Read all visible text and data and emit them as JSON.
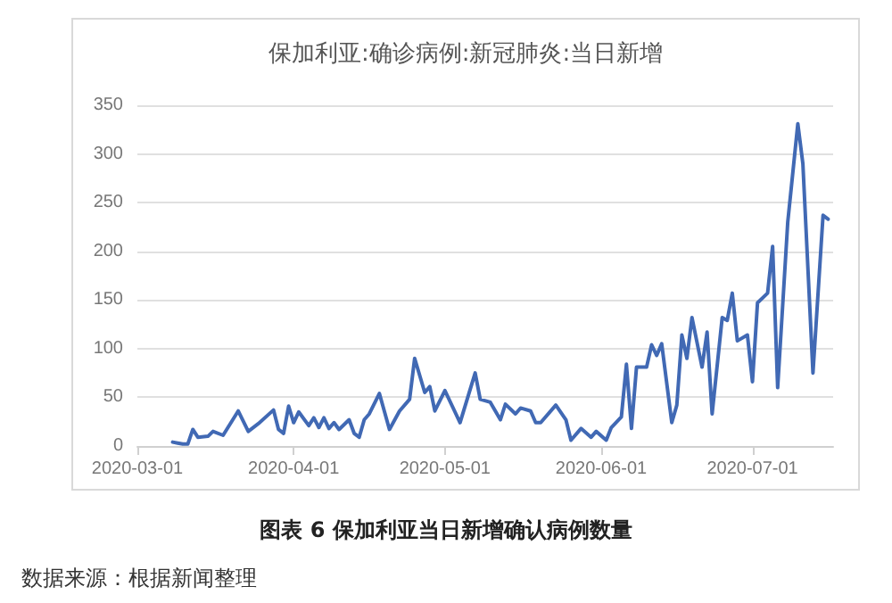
{
  "chart_data": {
    "type": "line",
    "title": "保加利亚:确诊病例:新冠肺炎:当日新增",
    "annotations": [
      "图表 6 保加利亚当日新增确认病例数量",
      "数据来源：根据新闻整理"
    ],
    "x": [
      "2020-03-08",
      "2020-03-09",
      "2020-03-10",
      "2020-03-11",
      "2020-03-12",
      "2020-03-13",
      "2020-03-15",
      "2020-03-16",
      "2020-03-18",
      "2020-03-21",
      "2020-03-23",
      "2020-03-25",
      "2020-03-28",
      "2020-03-29",
      "2020-03-30",
      "2020-03-31",
      "2020-04-01",
      "2020-04-02",
      "2020-04-04",
      "2020-04-05",
      "2020-04-06",
      "2020-04-07",
      "2020-04-08",
      "2020-04-09",
      "2020-04-10",
      "2020-04-12",
      "2020-04-13",
      "2020-04-14",
      "2020-04-15",
      "2020-04-16",
      "2020-04-18",
      "2020-04-20",
      "2020-04-22",
      "2020-04-24",
      "2020-04-25",
      "2020-04-27",
      "2020-04-28",
      "2020-04-29",
      "2020-05-01",
      "2020-05-04",
      "2020-05-07",
      "2020-05-08",
      "2020-05-10",
      "2020-05-12",
      "2020-05-13",
      "2020-05-15",
      "2020-05-16",
      "2020-05-18",
      "2020-05-19",
      "2020-05-20",
      "2020-05-23",
      "2020-05-25",
      "2020-05-26",
      "2020-05-28",
      "2020-05-30",
      "2020-05-31",
      "2020-06-02",
      "2020-06-03",
      "2020-06-05",
      "2020-06-06",
      "2020-06-07",
      "2020-06-08",
      "2020-06-10",
      "2020-06-11",
      "2020-06-12",
      "2020-06-13",
      "2020-06-15",
      "2020-06-16",
      "2020-06-17",
      "2020-06-18",
      "2020-06-19",
      "2020-06-21",
      "2020-06-22",
      "2020-06-23",
      "2020-06-25",
      "2020-06-26",
      "2020-06-27",
      "2020-06-28",
      "2020-06-30",
      "2020-07-01",
      "2020-07-02",
      "2020-07-04",
      "2020-07-05",
      "2020-07-06",
      "2020-07-08",
      "2020-07-10",
      "2020-07-11",
      "2020-07-13",
      "2020-07-15",
      "2020-07-16"
    ],
    "series": [
      {
        "color": "#4169b4",
        "values": [
          4,
          3,
          2,
          2,
          17,
          9,
          10,
          15,
          11,
          36,
          15,
          23,
          37,
          17,
          13,
          41,
          24,
          35,
          21,
          29,
          19,
          29,
          18,
          24,
          17,
          27,
          13,
          9,
          27,
          33,
          54,
          17,
          36,
          48,
          90,
          55,
          61,
          36,
          57,
          24,
          75,
          48,
          45,
          27,
          43,
          33,
          39,
          36,
          24,
          24,
          42,
          27,
          6,
          18,
          9,
          15,
          6,
          19,
          30,
          84,
          18,
          81,
          81,
          104,
          93,
          105,
          24,
          42,
          114,
          90,
          132,
          81,
          117,
          33,
          132,
          129,
          157,
          108,
          114,
          66,
          147,
          157,
          205,
          60,
          230,
          331,
          290,
          75,
          237,
          233
        ]
      }
    ],
    "xlim": [
      "2020-03-01",
      "2020-07-17"
    ],
    "xticks": [
      "2020-03-01",
      "2020-04-01",
      "2020-05-01",
      "2020-06-01",
      "2020-07-01"
    ],
    "ylim": [
      0,
      350
    ],
    "yticks": [
      0,
      50,
      100,
      150,
      200,
      250,
      300,
      350
    ],
    "grid": "y",
    "marker": "none",
    "line_style": "solid"
  }
}
